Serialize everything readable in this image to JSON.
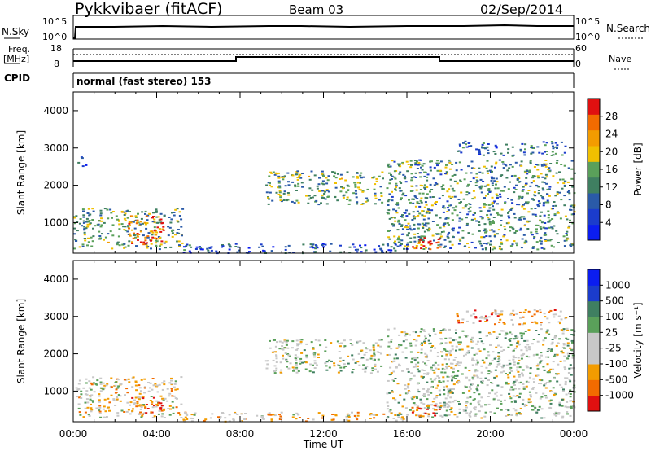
{
  "header": {
    "station": "Pykkvibaer (fitACF)",
    "beam": "Beam 03",
    "date": "02/Sep/2014"
  },
  "strips": {
    "nsky_label": "N.Sky",
    "nsky_ticks": [
      "10^5",
      "10^0"
    ],
    "nsearch_label": "N.Search",
    "nsearch_ticks": [
      "10^5",
      "10^0"
    ],
    "freq_label": "Freq.",
    "freq_unit": "[MHz]",
    "freq_ticks": [
      "18",
      "8"
    ],
    "nave_label": "Nave",
    "nave_ticks": [
      "60",
      "0"
    ],
    "cpid_label": "CPID",
    "cpid_value": "normal (fast stereo) 153"
  },
  "colors": {
    "power": [
      "#0b1df0",
      "#1b3ccc",
      "#2a5aa8",
      "#3f7f61",
      "#5aa05a",
      "#f0c000",
      "#f39c00",
      "#f26b00",
      "#e01010"
    ],
    "velocity": [
      "#e01010",
      "#f26b00",
      "#f39c00",
      "#c8c8c8",
      "#c8c8c8",
      "#5aa05a",
      "#3f7f61",
      "#1b3ccc",
      "#0b1df0"
    ]
  },
  "chart_data": [
    {
      "type": "heatmap",
      "name": "Power",
      "ylabel": "Slant Range [km]",
      "x_range_hours": [
        0,
        24
      ],
      "ylim": [
        180,
        4500
      ],
      "y_ticks": [
        "1000",
        "2000",
        "3000",
        "4000"
      ],
      "colorbar_label": "Power [dB]",
      "colorbar_ticks": [
        "4",
        "8",
        "12",
        "16",
        "20",
        "24",
        "28"
      ],
      "colorbar_range": [
        0,
        30
      ],
      "regions": [
        {
          "t": [
            0.0,
            5.2
          ],
          "r": [
            300,
            1400
          ],
          "level": 0.45
        },
        {
          "t": [
            2.6,
            4.3
          ],
          "r": [
            400,
            1200
          ],
          "level": 0.85
        },
        {
          "t": [
            0.2,
            0.6
          ],
          "r": [
            2500,
            2800
          ],
          "level": 0.2
        },
        {
          "t": [
            9.2,
            14.8
          ],
          "r": [
            1500,
            2400
          ],
          "level": 0.45
        },
        {
          "t": [
            15.0,
            24.0
          ],
          "r": [
            300,
            2700
          ],
          "level": 0.4
        },
        {
          "t": [
            16.2,
            17.7
          ],
          "r": [
            300,
            650
          ],
          "level": 0.95
        },
        {
          "t": [
            18.3,
            23.6
          ],
          "r": [
            2800,
            3200
          ],
          "level": 0.3
        },
        {
          "t": [
            5.0,
            16.0
          ],
          "r": [
            200,
            450
          ],
          "level": 0.25
        }
      ]
    },
    {
      "type": "heatmap",
      "name": "Velocity",
      "ylabel": "Slant Range [km]",
      "x_range_hours": [
        0,
        24
      ],
      "ylim": [
        180,
        4500
      ],
      "y_ticks": [
        "1000",
        "2000",
        "3000",
        "4000"
      ],
      "xlabel": "Time UT",
      "x_ticks": [
        "00:00",
        "04:00",
        "08:00",
        "12:00",
        "16:00",
        "20:00",
        "00:00"
      ],
      "colorbar_label": "Velocity [m s⁻¹]",
      "colorbar_ticks": [
        "-1000",
        "-500",
        "-100",
        "-25",
        "25",
        "100",
        "500",
        "1000"
      ],
      "regions": [
        {
          "t": [
            0.0,
            5.2
          ],
          "r": [
            300,
            1400
          ],
          "level": 0.4
        },
        {
          "t": [
            2.6,
            4.3
          ],
          "r": [
            400,
            900
          ],
          "level": 0.15
        },
        {
          "t": [
            9.2,
            14.8
          ],
          "r": [
            1500,
            2400
          ],
          "level": 0.5
        },
        {
          "t": [
            15.0,
            24.0
          ],
          "r": [
            300,
            2700
          ],
          "level": 0.5
        },
        {
          "t": [
            16.2,
            17.7
          ],
          "r": [
            300,
            650
          ],
          "level": 0.15
        },
        {
          "t": [
            18.3,
            23.6
          ],
          "r": [
            2800,
            3200
          ],
          "level": 0.3
        },
        {
          "t": [
            5.0,
            16.0
          ],
          "r": [
            200,
            450
          ],
          "level": 0.35
        }
      ]
    }
  ]
}
